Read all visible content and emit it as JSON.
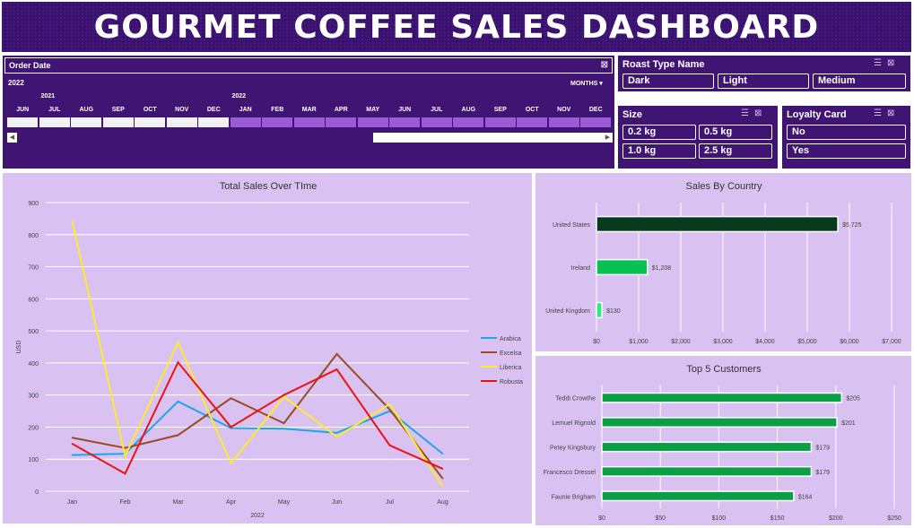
{
  "dashboard": {
    "title": "GOURMET COFFEE SALES DASHBOARD"
  },
  "timeline": {
    "header": "Order Date",
    "selected_year": "2022",
    "period_dropdown": "MONTHS ▾",
    "year_labels": [
      {
        "label": "2021",
        "index": 1
      },
      {
        "label": "2022",
        "index": 7
      }
    ],
    "months": [
      {
        "label": "JUN",
        "selected": false
      },
      {
        "label": "JUL",
        "selected": false
      },
      {
        "label": "AUG",
        "selected": false
      },
      {
        "label": "SEP",
        "selected": false
      },
      {
        "label": "OCT",
        "selected": false
      },
      {
        "label": "NOV",
        "selected": false
      },
      {
        "label": "DEC",
        "selected": false
      },
      {
        "label": "JAN",
        "selected": true
      },
      {
        "label": "FEB",
        "selected": true
      },
      {
        "label": "MAR",
        "selected": true
      },
      {
        "label": "APR",
        "selected": true
      },
      {
        "label": "MAY",
        "selected": true
      },
      {
        "label": "JUN",
        "selected": true
      },
      {
        "label": "JUL",
        "selected": true
      },
      {
        "label": "AUG",
        "selected": true
      },
      {
        "label": "SEP",
        "selected": true
      },
      {
        "label": "OCT",
        "selected": true
      },
      {
        "label": "NOV",
        "selected": true
      },
      {
        "label": "DEC",
        "selected": true
      }
    ],
    "colors": {
      "selected": "#9b5ad6",
      "unselected": "#f2f2f2"
    }
  },
  "slicers": {
    "roast_type": {
      "title": "Roast Type Name",
      "items": [
        "Dark",
        "Light",
        "Medium"
      ]
    },
    "size": {
      "title": "Size",
      "items": [
        "0.2 kg",
        "0.5 kg",
        "1.0 kg",
        "2.5 kg"
      ]
    },
    "loyalty": {
      "title": "Loyalty Card",
      "items": [
        "No",
        "Yes"
      ]
    },
    "icons": [
      "multi-select-icon",
      "clear-filter-icon"
    ]
  },
  "chart_data": [
    {
      "type": "line",
      "title": "Total Sales Over TIme",
      "xlabel": "2022",
      "ylabel": "USD",
      "categories": [
        "Jan",
        "Feb",
        "Mar",
        "Apr",
        "May",
        "Jun",
        "Jul",
        "Aug"
      ],
      "ylim": [
        0,
        900
      ],
      "yticks": [
        0,
        100,
        200,
        300,
        400,
        500,
        600,
        700,
        800,
        900
      ],
      "grid": true,
      "legend": "right",
      "series": [
        {
          "name": "Arabica",
          "color": "#1aa7e8",
          "values": [
            113,
            117,
            280,
            197,
            195,
            182,
            250,
            117
          ]
        },
        {
          "name": "Excelsa",
          "color": "#9b4a1e",
          "values": [
            167,
            135,
            175,
            290,
            212,
            428,
            255,
            40
          ]
        },
        {
          "name": "Liberica",
          "color": "#ffeb2e",
          "values": [
            843,
            110,
            464,
            87,
            295,
            170,
            272,
            15
          ]
        },
        {
          "name": "Robusta",
          "color": "#ee1111",
          "values": [
            148,
            55,
            402,
            200,
            300,
            380,
            143,
            70
          ]
        }
      ]
    },
    {
      "type": "bar",
      "title": "Sales By Country",
      "categories": [
        "United States",
        "Ireland",
        "United Kingdom"
      ],
      "values": [
        5725,
        1208,
        130
      ],
      "data_labels": [
        "$5,725",
        "$1,208",
        "$130"
      ],
      "colors": [
        "#063b1e",
        "#08c154",
        "#2ee87a"
      ],
      "xlim": [
        0,
        7000
      ],
      "xticks": [
        0,
        1000,
        2000,
        3000,
        4000,
        5000,
        6000,
        7000
      ],
      "xtick_labels": [
        "$0",
        "$1,000",
        "$2,000",
        "$3,000",
        "$4,000",
        "$5,000",
        "$6,000",
        "$7,000"
      ],
      "grid": true
    },
    {
      "type": "bar",
      "title": "Top 5 Customers",
      "categories": [
        "Teddi Crowthe",
        "Lemuel Rignold",
        "Petey Kingsbury",
        "Francesco Dressel",
        "Faunie Brigham"
      ],
      "values": [
        205,
        201,
        179,
        179,
        164
      ],
      "data_labels": [
        "$205",
        "$201",
        "$179",
        "$179",
        "$164"
      ],
      "colors": [
        "#0a9e45",
        "#0a9e45",
        "#0a9e45",
        "#0a9e45",
        "#0a9e45"
      ],
      "xlim": [
        0,
        250
      ],
      "xticks": [
        0,
        50,
        100,
        150,
        200,
        250
      ],
      "xtick_labels": [
        "$0",
        "$50",
        "$100",
        "$150",
        "$200",
        "$250"
      ],
      "grid": true
    }
  ]
}
